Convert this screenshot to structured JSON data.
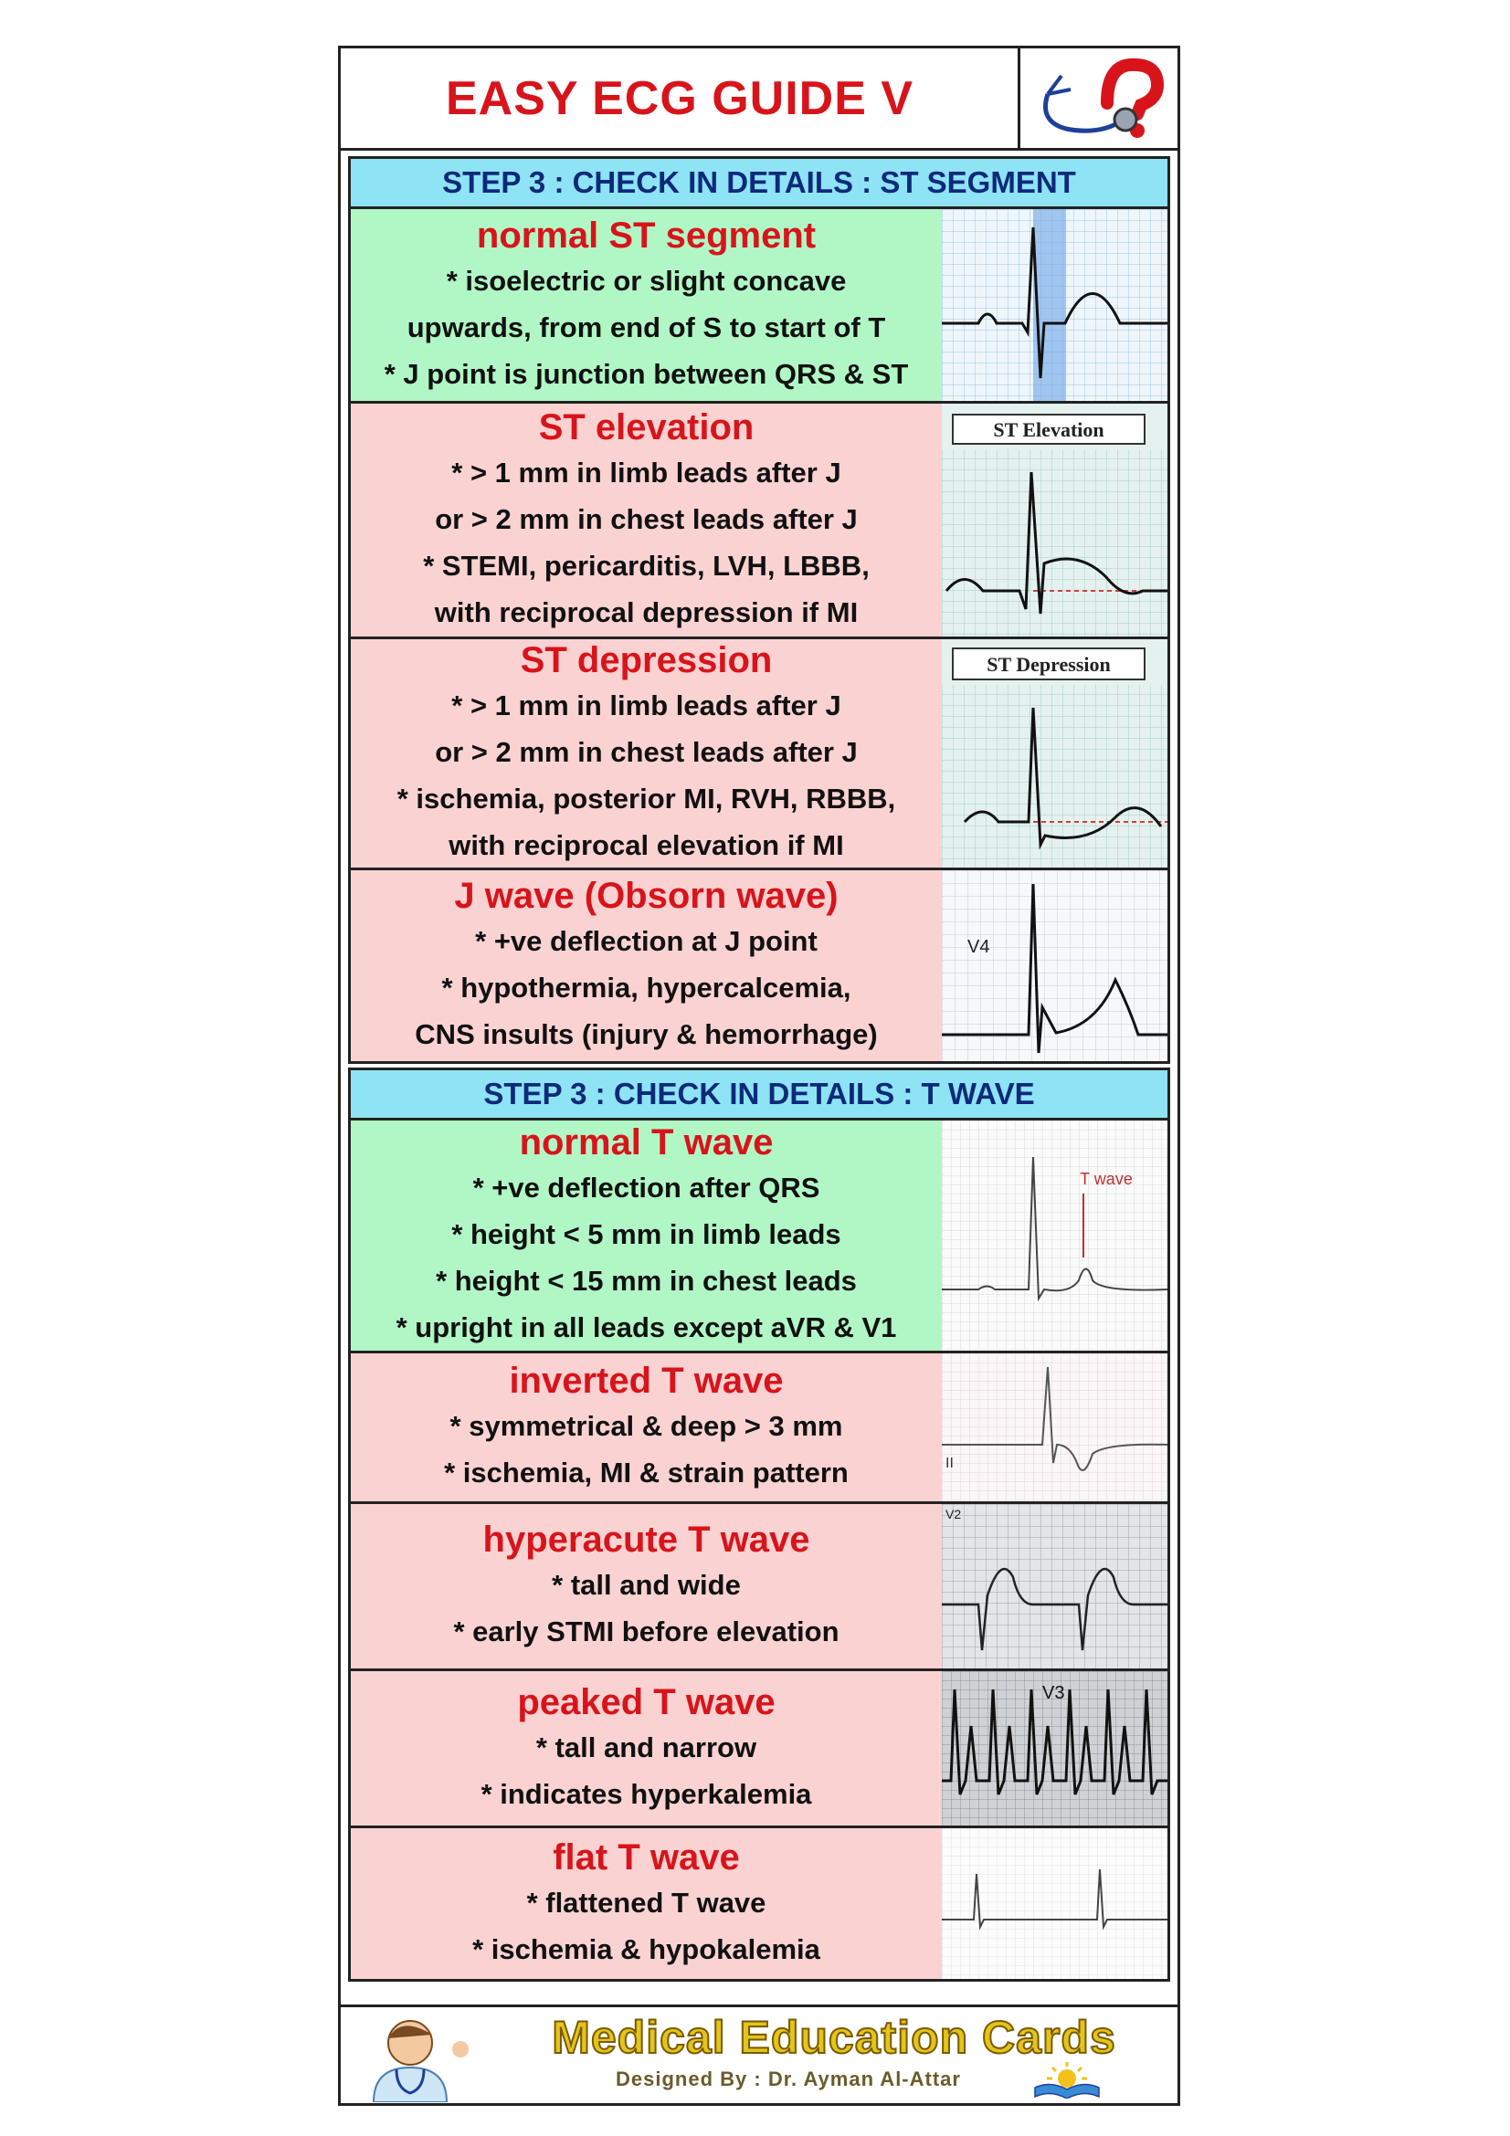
{
  "title": "EASY ECG GUIDE V",
  "sections": [
    {
      "header": "STEP 3 : CHECK IN DETAILS : ST SEGMENT",
      "rows": [
        {
          "heading": "normal ST segment",
          "lines": [
            "* isoelectric or slight concave",
            "upwards, from end of S to start of T",
            "* J point is junction between QRS & ST"
          ],
          "image_label": ""
        },
        {
          "heading": "ST elevation",
          "lines": [
            "* > 1 mm in limb leads after J",
            "or > 2 mm in chest leads after J",
            "* STEMI, pericarditis, LVH, LBBB,",
            "with reciprocal depression if MI"
          ],
          "image_label": "ST Elevation"
        },
        {
          "heading": "ST depression",
          "lines": [
            "* > 1 mm in limb leads after J",
            "or > 2 mm in chest leads after J",
            "* ischemia, posterior MI, RVH, RBBB,",
            "with reciprocal elevation if MI"
          ],
          "image_label": "ST Depression"
        },
        {
          "heading": "J wave (Obsorn wave)",
          "lines": [
            "* +ve deflection at J point",
            "* hypothermia, hypercalcemia,",
            "CNS insults (injury & hemorrhage)"
          ],
          "image_label": "V4"
        }
      ]
    },
    {
      "header": "STEP 3 : CHECK IN DETAILS : T WAVE",
      "rows": [
        {
          "heading": "normal T wave",
          "lines": [
            "* +ve deflection after QRS",
            "* height < 5 mm in limb leads",
            "* height < 15 mm in chest leads",
            "* upright in all leads except aVR & V1"
          ],
          "image_label": "T wave"
        },
        {
          "heading": "inverted T wave",
          "lines": [
            "* symmetrical & deep > 3 mm",
            "* ischemia, MI & strain pattern"
          ],
          "image_label": "II"
        },
        {
          "heading": "hyperacute T wave",
          "lines": [
            "* tall and wide",
            "* early STMI before elevation"
          ],
          "image_label": "V2"
        },
        {
          "heading": "peaked T wave",
          "lines": [
            "* tall and narrow",
            "* indicates hyperkalemia"
          ],
          "image_label": "V3"
        },
        {
          "heading": "flat T wave",
          "lines": [
            "* flattened T wave",
            "* ischemia & hypokalemia"
          ],
          "image_label": ""
        }
      ]
    }
  ],
  "footer": {
    "title": "Medical Education Cards",
    "credit": "Designed By : Dr. Ayman Al-Attar"
  },
  "colors": {
    "accent_red": "#d8141b",
    "header_bg": "#8ee3f4",
    "header_text": "#0d2a7a",
    "normal_bg": "#b1f7c6",
    "abnormal_bg": "#fbd2d2"
  }
}
